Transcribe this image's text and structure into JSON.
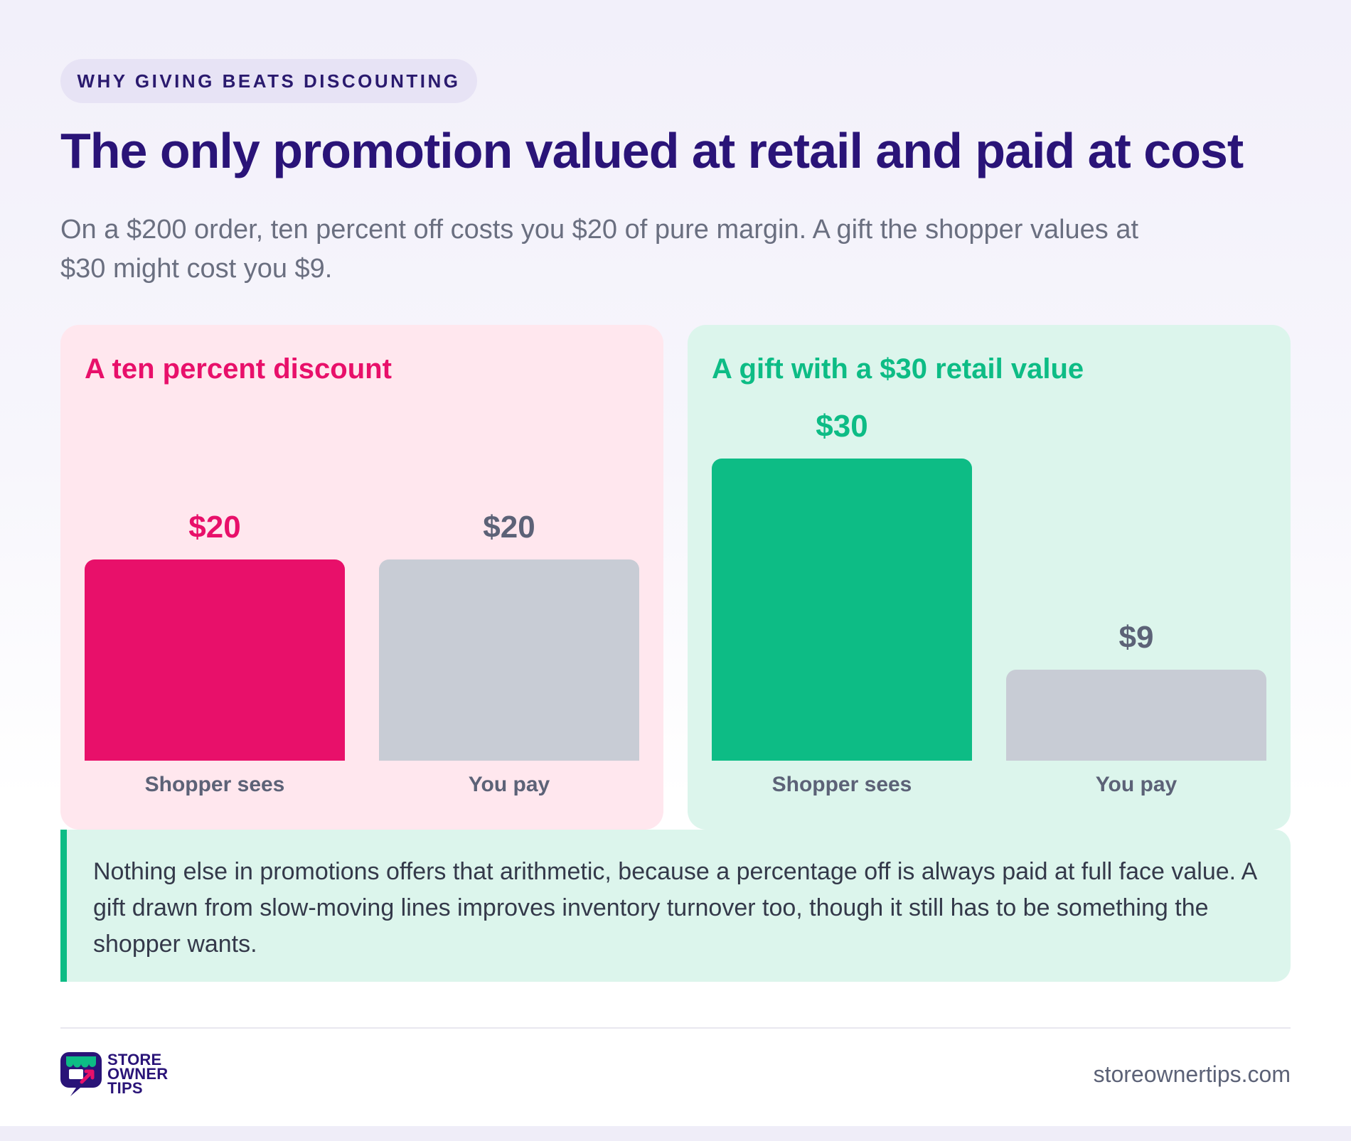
{
  "eyebrow": "WHY GIVING BEATS DISCOUNTING",
  "title": "The only promotion valued at retail and paid at cost",
  "subtitle": "On a $200 order, ten percent off costs you $20 of pure margin. A gift the shopper values at $30 might cost you $9.",
  "colors": {
    "discount_accent": "#e8106a",
    "gift_accent": "#0dbc85",
    "cost_bar": "#c8ccd5",
    "title": "#2a1478"
  },
  "chart_data": [
    {
      "type": "bar",
      "title": "A ten percent discount",
      "categories": [
        "Shopper sees",
        "You pay"
      ],
      "values": [
        20,
        20
      ],
      "value_labels": [
        "$20",
        "$20"
      ],
      "ylim": [
        0,
        30
      ],
      "bar_colors": [
        "#e8106a",
        "#c8ccd5"
      ],
      "value_label_colors": [
        "#e8106a",
        "#5c6277"
      ],
      "grid": false
    },
    {
      "type": "bar",
      "title": "A gift with a $30 retail value",
      "categories": [
        "Shopper sees",
        "You pay"
      ],
      "values": [
        30,
        9
      ],
      "value_labels": [
        "$30",
        "$9"
      ],
      "ylim": [
        0,
        30
      ],
      "bar_colors": [
        "#0dbc85",
        "#c8ccd5"
      ],
      "value_label_colors": [
        "#0dbc85",
        "#5c6277"
      ],
      "grid": false
    }
  ],
  "note": "Nothing else in promotions offers that arithmetic, because a percentage off is always paid at full face value. A gift drawn from slow-moving lines improves inventory turnover too, though it still has to be something the shopper wants.",
  "footer": {
    "logo_lines": [
      "STORE",
      "OWNER",
      "TIPS"
    ],
    "site": "storeownertips.com"
  }
}
